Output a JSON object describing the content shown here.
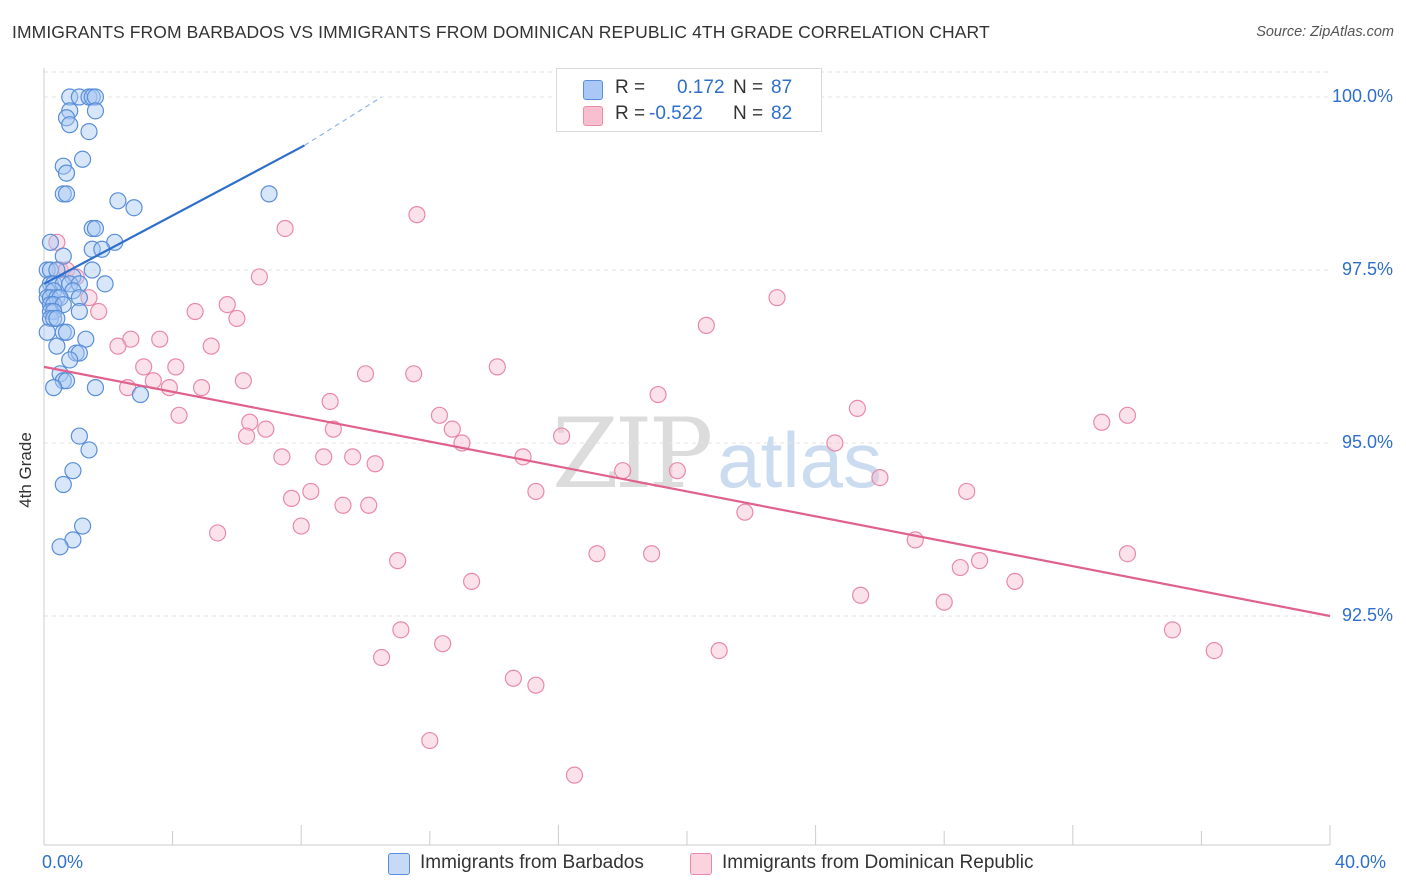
{
  "title": "IMMIGRANTS FROM BARBADOS VS IMMIGRANTS FROM DOMINICAN REPUBLIC 4TH GRADE CORRELATION CHART",
  "source": "Source: ZipAtlas.com",
  "watermark": {
    "zip": "ZIP",
    "atlas": "atlas"
  },
  "legend": {
    "rows": [
      {
        "r_label": "R =",
        "r_value": "0.172",
        "n_label": "N =",
        "n_value": "87"
      },
      {
        "r_label": "R =",
        "r_value": "-0.522",
        "n_label": "N =",
        "n_value": "82"
      }
    ]
  },
  "bottom_legend": [
    "Immigrants from Barbados",
    "Immigrants from Dominican Republic"
  ],
  "colors": {
    "barbados_fill": "#a9c8f5",
    "barbados_stroke": "#5a8fd8",
    "barbados_line": "#2f6fcc",
    "dominican_fill": "#f7bfd0",
    "dominican_stroke": "#e88aa8",
    "dominican_line": "#e0628c",
    "tick_label": "#2f6fcc",
    "grid": "#e3e3e3"
  },
  "chart_data": {
    "type": "scatter",
    "xlabel": "",
    "ylabel": "4th Grade",
    "xlim": [
      0,
      40
    ],
    "ylim": [
      90.0,
      100.2
    ],
    "x_tick_labels": [
      "0.0%",
      "40.0%"
    ],
    "y_ticks": [
      92.5,
      95.0,
      97.5,
      100.0
    ],
    "y_tick_labels": [
      "92.5%",
      "95.0%",
      "97.5%",
      "100.0%"
    ],
    "grid": "horizontal dashed",
    "legend_position": "top-center",
    "series": [
      {
        "name": "Immigrants from Barbados",
        "r": 0.172,
        "n": 87,
        "trend": {
          "x": [
            0,
            8.1
          ],
          "y": [
            97.3,
            99.3
          ],
          "dashed_extension": {
            "x": [
              8.1,
              10.5
            ],
            "y": [
              99.3,
              100.0
            ]
          }
        },
        "points": [
          [
            0.8,
            100.0
          ],
          [
            1.1,
            100.0
          ],
          [
            1.4,
            100.0
          ],
          [
            1.5,
            100.0
          ],
          [
            1.6,
            100.0
          ],
          [
            0.8,
            99.8
          ],
          [
            1.6,
            99.8
          ],
          [
            0.7,
            99.7
          ],
          [
            0.8,
            99.6
          ],
          [
            1.4,
            99.5
          ],
          [
            1.2,
            99.1
          ],
          [
            0.6,
            99.0
          ],
          [
            0.7,
            98.9
          ],
          [
            0.6,
            98.6
          ],
          [
            0.7,
            98.6
          ],
          [
            7.0,
            98.6
          ],
          [
            2.3,
            98.5
          ],
          [
            2.8,
            98.4
          ],
          [
            1.5,
            98.1
          ],
          [
            1.6,
            98.1
          ],
          [
            0.2,
            97.9
          ],
          [
            2.2,
            97.9
          ],
          [
            1.5,
            97.8
          ],
          [
            1.8,
            97.8
          ],
          [
            0.6,
            97.7
          ],
          [
            0.1,
            97.5
          ],
          [
            0.2,
            97.5
          ],
          [
            0.4,
            97.5
          ],
          [
            1.5,
            97.5
          ],
          [
            0.9,
            97.4
          ],
          [
            0.2,
            97.3
          ],
          [
            0.3,
            97.3
          ],
          [
            0.6,
            97.3
          ],
          [
            0.8,
            97.3
          ],
          [
            1.1,
            97.3
          ],
          [
            1.9,
            97.3
          ],
          [
            0.1,
            97.2
          ],
          [
            0.3,
            97.2
          ],
          [
            0.9,
            97.2
          ],
          [
            0.1,
            97.1
          ],
          [
            0.2,
            97.1
          ],
          [
            0.4,
            97.1
          ],
          [
            0.5,
            97.1
          ],
          [
            1.1,
            97.1
          ],
          [
            0.2,
            97.0
          ],
          [
            0.3,
            97.0
          ],
          [
            0.6,
            97.0
          ],
          [
            0.2,
            96.9
          ],
          [
            0.3,
            96.9
          ],
          [
            1.1,
            96.9
          ],
          [
            0.2,
            96.8
          ],
          [
            0.3,
            96.8
          ],
          [
            0.4,
            96.8
          ],
          [
            0.1,
            96.6
          ],
          [
            0.6,
            96.6
          ],
          [
            0.7,
            96.6
          ],
          [
            1.3,
            96.5
          ],
          [
            0.4,
            96.4
          ],
          [
            1.0,
            96.3
          ],
          [
            1.1,
            96.3
          ],
          [
            0.8,
            96.2
          ],
          [
            0.5,
            96.0
          ],
          [
            0.6,
            95.9
          ],
          [
            0.7,
            95.9
          ],
          [
            0.3,
            95.8
          ],
          [
            1.6,
            95.8
          ],
          [
            3.0,
            95.7
          ],
          [
            1.1,
            95.1
          ],
          [
            1.4,
            94.9
          ],
          [
            0.9,
            94.6
          ],
          [
            0.6,
            94.4
          ],
          [
            1.2,
            93.8
          ],
          [
            0.9,
            93.6
          ],
          [
            0.5,
            93.5
          ]
        ]
      },
      {
        "name": "Immigrants from Dominican Republic",
        "r": -0.522,
        "n": 82,
        "trend": {
          "x": [
            0,
            40
          ],
          "y": [
            96.1,
            92.5
          ]
        },
        "points": [
          [
            11.6,
            98.3
          ],
          [
            7.5,
            98.1
          ],
          [
            0.4,
            97.9
          ],
          [
            0.5,
            97.5
          ],
          [
            0.7,
            97.5
          ],
          [
            1.0,
            97.4
          ],
          [
            6.7,
            97.4
          ],
          [
            22.8,
            97.1
          ],
          [
            1.4,
            97.1
          ],
          [
            5.7,
            97.0
          ],
          [
            4.7,
            96.9
          ],
          [
            1.7,
            96.9
          ],
          [
            6.0,
            96.8
          ],
          [
            20.6,
            96.7
          ],
          [
            2.7,
            96.5
          ],
          [
            3.6,
            96.5
          ],
          [
            2.3,
            96.4
          ],
          [
            5.2,
            96.4
          ],
          [
            14.1,
            96.1
          ],
          [
            3.1,
            96.1
          ],
          [
            4.1,
            96.1
          ],
          [
            10.0,
            96.0
          ],
          [
            11.5,
            96.0
          ],
          [
            6.2,
            95.9
          ],
          [
            3.4,
            95.9
          ],
          [
            2.6,
            95.8
          ],
          [
            3.9,
            95.8
          ],
          [
            4.9,
            95.8
          ],
          [
            19.1,
            95.7
          ],
          [
            8.9,
            95.6
          ],
          [
            25.3,
            95.5
          ],
          [
            33.7,
            95.4
          ],
          [
            4.2,
            95.4
          ],
          [
            12.3,
            95.4
          ],
          [
            6.4,
            95.3
          ],
          [
            32.9,
            95.3
          ],
          [
            9.0,
            95.2
          ],
          [
            12.7,
            95.2
          ],
          [
            6.9,
            95.2
          ],
          [
            6.3,
            95.1
          ],
          [
            16.1,
            95.1
          ],
          [
            24.6,
            95.0
          ],
          [
            13.0,
            95.0
          ],
          [
            7.4,
            94.8
          ],
          [
            8.7,
            94.8
          ],
          [
            14.9,
            94.8
          ],
          [
            9.6,
            94.8
          ],
          [
            10.3,
            94.7
          ],
          [
            18.0,
            94.6
          ],
          [
            19.7,
            94.6
          ],
          [
            26.0,
            94.5
          ],
          [
            15.3,
            94.3
          ],
          [
            8.3,
            94.3
          ],
          [
            28.7,
            94.3
          ],
          [
            7.7,
            94.2
          ],
          [
            10.1,
            94.1
          ],
          [
            9.3,
            94.1
          ],
          [
            21.8,
            94.0
          ],
          [
            8.0,
            93.8
          ],
          [
            5.4,
            93.7
          ],
          [
            27.1,
            93.6
          ],
          [
            17.2,
            93.4
          ],
          [
            18.9,
            93.4
          ],
          [
            11.0,
            93.3
          ],
          [
            33.7,
            93.4
          ],
          [
            29.1,
            93.3
          ],
          [
            28.5,
            93.2
          ],
          [
            30.2,
            93.0
          ],
          [
            13.3,
            93.0
          ],
          [
            25.4,
            92.8
          ],
          [
            28.0,
            92.7
          ],
          [
            11.1,
            92.3
          ],
          [
            35.1,
            92.3
          ],
          [
            12.4,
            92.1
          ],
          [
            36.4,
            92.0
          ],
          [
            21.0,
            92.0
          ],
          [
            10.5,
            91.9
          ],
          [
            14.6,
            91.6
          ],
          [
            15.3,
            91.5
          ],
          [
            12.0,
            90.7
          ],
          [
            16.5,
            90.2
          ]
        ]
      }
    ]
  }
}
